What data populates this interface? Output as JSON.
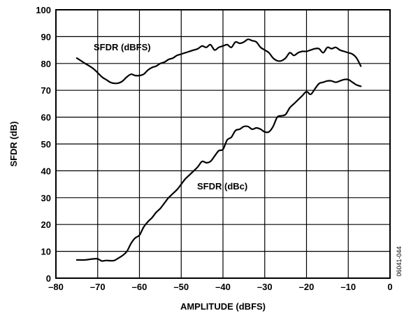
{
  "chart_data": {
    "type": "line",
    "title": "",
    "xlabel": "AMPLITUDE (dBFS)",
    "ylabel": "SFDR (dB)",
    "xlim": [
      -80,
      0
    ],
    "ylim": [
      0,
      100
    ],
    "x_ticks": [
      -80,
      -70,
      -60,
      -50,
      -40,
      -30,
      -20,
      -10,
      0
    ],
    "y_ticks": [
      0,
      10,
      20,
      30,
      40,
      50,
      60,
      70,
      80,
      90,
      100
    ],
    "x_tick_labels": [
      "–80",
      "–70",
      "–60",
      "–50",
      "–40",
      "–30",
      "–20",
      "–10",
      "0"
    ],
    "y_tick_labels": [
      "0",
      "10",
      "20",
      "30",
      "40",
      "50",
      "60",
      "70",
      "80",
      "90",
      "100"
    ],
    "grid": true,
    "figure_id": "06041-044",
    "line_color": "#000000",
    "series": [
      {
        "name": "SFDR (dBFS)",
        "x": [
          -75,
          -73,
          -71,
          -69,
          -68,
          -67,
          -66,
          -65,
          -64,
          -63,
          -62,
          -61,
          -60,
          -59,
          -58,
          -57,
          -56,
          -55,
          -54,
          -53,
          -52,
          -51,
          -50,
          -49,
          -48,
          -47,
          -46,
          -45,
          -44,
          -43,
          -42,
          -41,
          -40,
          -39,
          -38,
          -37,
          -36,
          -35,
          -34,
          -33,
          -32,
          -31,
          -30,
          -29,
          -28,
          -27,
          -26,
          -25,
          -24,
          -23,
          -22,
          -21,
          -20,
          -19,
          -18,
          -17,
          -16,
          -15,
          -14,
          -13,
          -12,
          -11,
          -10,
          -9,
          -8,
          -7
        ],
        "y": [
          82,
          80,
          78,
          75,
          74,
          73,
          72.6,
          72.7,
          73.5,
          75,
          76,
          75.5,
          75.5,
          76,
          77.5,
          78.5,
          79,
          80,
          80.5,
          81.5,
          82,
          83,
          83.5,
          84,
          84.5,
          85,
          85.5,
          86.5,
          86,
          87,
          85,
          86,
          86.5,
          87,
          86,
          88,
          87.5,
          88,
          89,
          88.5,
          88,
          86,
          85,
          84,
          82,
          81,
          81,
          82,
          84,
          83,
          84,
          84.5,
          84.5,
          85,
          85.5,
          85.5,
          84,
          86,
          85.5,
          86,
          85,
          84.5,
          84,
          83.5,
          82,
          79
        ]
      },
      {
        "name": "SFDR (dBc)",
        "x": [
          -75,
          -73,
          -71,
          -70,
          -69,
          -68,
          -67,
          -66,
          -65,
          -64,
          -63,
          -62,
          -61,
          -60,
          -59,
          -58,
          -57,
          -56,
          -55,
          -54,
          -53,
          -52,
          -51,
          -50,
          -49,
          -48,
          -47,
          -46,
          -45,
          -44,
          -43,
          -42,
          -41,
          -40,
          -39,
          -38,
          -37,
          -36,
          -35,
          -34,
          -33,
          -32,
          -31,
          -30,
          -29,
          -28,
          -27,
          -26,
          -25,
          -24,
          -23,
          -22,
          -21,
          -20,
          -19,
          -18,
          -17,
          -16,
          -15,
          -14,
          -13,
          -12,
          -11,
          -10,
          -9,
          -8,
          -7
        ],
        "y": [
          6.8,
          6.8,
          7.2,
          7.2,
          6.4,
          6.6,
          6.5,
          6.6,
          7.5,
          8.5,
          10,
          13,
          15,
          16,
          19,
          21,
          22.5,
          24.5,
          26,
          28,
          30,
          31.5,
          33,
          35,
          37,
          38.5,
          40,
          41.5,
          43.5,
          43,
          43.5,
          45.5,
          47.5,
          48,
          51.5,
          52.5,
          55,
          55.5,
          56.5,
          56.5,
          55.5,
          56,
          55.5,
          54.5,
          54.5,
          56.5,
          60,
          60.5,
          61,
          63.5,
          65,
          66.5,
          68,
          69.5,
          68.5,
          70.5,
          72.5,
          73,
          73.5,
          73.5,
          73,
          73.5,
          74,
          74,
          73,
          72,
          71.5
        ]
      }
    ],
    "annotations": [
      {
        "text": "SFDR (dBFS)",
        "series": "SFDR (dBFS)"
      },
      {
        "text": "SFDR (dBc)",
        "series": "SFDR (dBc)"
      }
    ]
  }
}
